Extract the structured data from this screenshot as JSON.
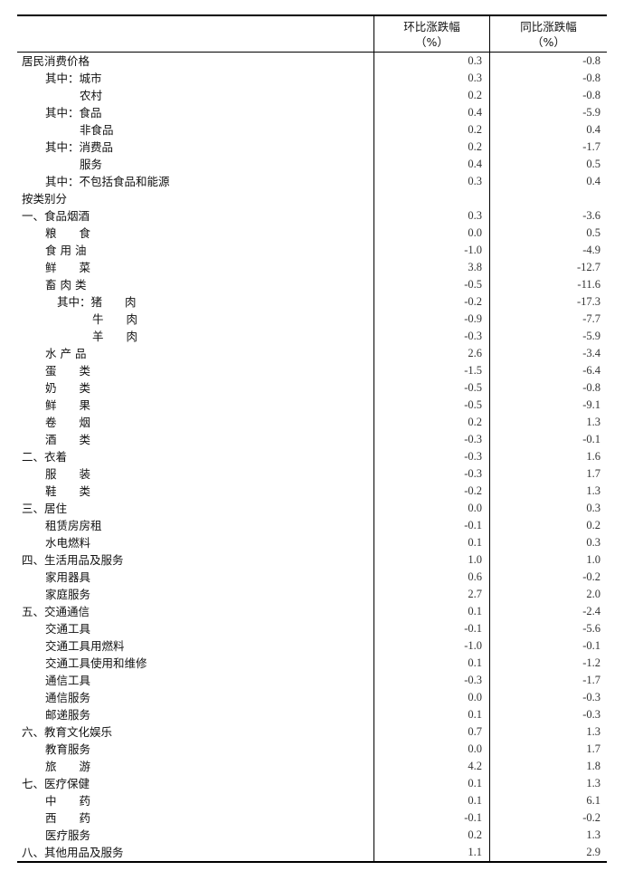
{
  "header": {
    "col1_title": "环比涨跌幅",
    "col1_unit": "（%）",
    "col2_title": "同比涨跌幅",
    "col2_unit": "（%）"
  },
  "rows": [
    {
      "label": "居民消费价格",
      "indent": 0,
      "mom": "0.3",
      "yoy": "-0.8"
    },
    {
      "label": "其中：城市",
      "indent": 1,
      "mom": "0.3",
      "yoy": "-0.8"
    },
    {
      "label": "农村",
      "indent": 2,
      "mom": "0.2",
      "yoy": "-0.8"
    },
    {
      "label": "其中：食品",
      "indent": 1,
      "mom": "0.4",
      "yoy": "-5.9"
    },
    {
      "label": "非食品",
      "indent": 2,
      "mom": "0.2",
      "yoy": "0.4"
    },
    {
      "label": "其中：消费品",
      "indent": 1,
      "mom": "0.2",
      "yoy": "-1.7"
    },
    {
      "label": "服务",
      "indent": 2,
      "mom": "0.4",
      "yoy": "0.5"
    },
    {
      "label": "其中：不包括食品和能源",
      "indent": 1,
      "mom": "0.3",
      "yoy": "0.4"
    },
    {
      "label": "按类别分",
      "indent": 0,
      "mom": "",
      "yoy": ""
    },
    {
      "label": "一、食品烟酒",
      "indent": 0,
      "mom": "0.3",
      "yoy": "-3.6"
    },
    {
      "label": "粮　　食",
      "indent": 1,
      "mom": "0.0",
      "yoy": "0.5"
    },
    {
      "label": "食 用 油",
      "indent": 1,
      "mom": "-1.0",
      "yoy": "-4.9"
    },
    {
      "label": "鲜　　菜",
      "indent": 1,
      "mom": "3.8",
      "yoy": "-12.7"
    },
    {
      "label": "畜 肉 类",
      "indent": 1,
      "mom": "-0.5",
      "yoy": "-11.6"
    },
    {
      "label": "其中：猪　　肉",
      "indent": 3,
      "mom": "-0.2",
      "yoy": "-17.3"
    },
    {
      "label": "牛　　肉",
      "indent": 4,
      "mom": "-0.9",
      "yoy": "-7.7"
    },
    {
      "label": "羊　　肉",
      "indent": 4,
      "mom": "-0.3",
      "yoy": "-5.9"
    },
    {
      "label": "水 产 品",
      "indent": 1,
      "mom": "2.6",
      "yoy": "-3.4"
    },
    {
      "label": "蛋　　类",
      "indent": 1,
      "mom": "-1.5",
      "yoy": "-6.4"
    },
    {
      "label": "奶　　类",
      "indent": 1,
      "mom": "-0.5",
      "yoy": "-0.8"
    },
    {
      "label": "鲜　　果",
      "indent": 1,
      "mom": "-0.5",
      "yoy": "-9.1"
    },
    {
      "label": "卷　　烟",
      "indent": 1,
      "mom": "0.2",
      "yoy": "1.3"
    },
    {
      "label": "酒　　类",
      "indent": 1,
      "mom": "-0.3",
      "yoy": "-0.1"
    },
    {
      "label": "二、衣着",
      "indent": 0,
      "mom": "-0.3",
      "yoy": "1.6"
    },
    {
      "label": "服　　装",
      "indent": 1,
      "mom": "-0.3",
      "yoy": "1.7"
    },
    {
      "label": "鞋　　类",
      "indent": 1,
      "mom": "-0.2",
      "yoy": "1.3"
    },
    {
      "label": "三、居住",
      "indent": 0,
      "mom": "0.0",
      "yoy": "0.3"
    },
    {
      "label": "租赁房房租",
      "indent": 1,
      "mom": "-0.1",
      "yoy": "0.2"
    },
    {
      "label": "水电燃料",
      "indent": 1,
      "mom": "0.1",
      "yoy": "0.3"
    },
    {
      "label": "四、生活用品及服务",
      "indent": 0,
      "mom": "1.0",
      "yoy": "1.0"
    },
    {
      "label": "家用器具",
      "indent": 1,
      "mom": "0.6",
      "yoy": "-0.2"
    },
    {
      "label": "家庭服务",
      "indent": 1,
      "mom": "2.7",
      "yoy": "2.0"
    },
    {
      "label": "五、交通通信",
      "indent": 0,
      "mom": "0.1",
      "yoy": "-2.4"
    },
    {
      "label": "交通工具",
      "indent": 1,
      "mom": "-0.1",
      "yoy": "-5.6"
    },
    {
      "label": "交通工具用燃料",
      "indent": 1,
      "mom": "-1.0",
      "yoy": "-0.1"
    },
    {
      "label": "交通工具使用和维修",
      "indent": 1,
      "mom": "0.1",
      "yoy": "-1.2"
    },
    {
      "label": "通信工具",
      "indent": 1,
      "mom": "-0.3",
      "yoy": "-1.7"
    },
    {
      "label": "通信服务",
      "indent": 1,
      "mom": "0.0",
      "yoy": "-0.3"
    },
    {
      "label": "邮递服务",
      "indent": 1,
      "mom": "0.1",
      "yoy": "-0.3"
    },
    {
      "label": "六、教育文化娱乐",
      "indent": 0,
      "mom": "0.7",
      "yoy": "1.3"
    },
    {
      "label": "教育服务",
      "indent": 1,
      "mom": "0.0",
      "yoy": "1.7"
    },
    {
      "label": "旅　　游",
      "indent": 1,
      "mom": "4.2",
      "yoy": "1.8"
    },
    {
      "label": "七、医疗保健",
      "indent": 0,
      "mom": "0.1",
      "yoy": "1.3"
    },
    {
      "label": "中　　药",
      "indent": 1,
      "mom": "0.1",
      "yoy": "6.1"
    },
    {
      "label": "西　　药",
      "indent": 1,
      "mom": "-0.1",
      "yoy": "-0.2"
    },
    {
      "label": "医疗服务",
      "indent": 1,
      "mom": "0.2",
      "yoy": "1.3"
    },
    {
      "label": "八、其他用品及服务",
      "indent": 0,
      "mom": "1.1",
      "yoy": "2.9"
    }
  ]
}
